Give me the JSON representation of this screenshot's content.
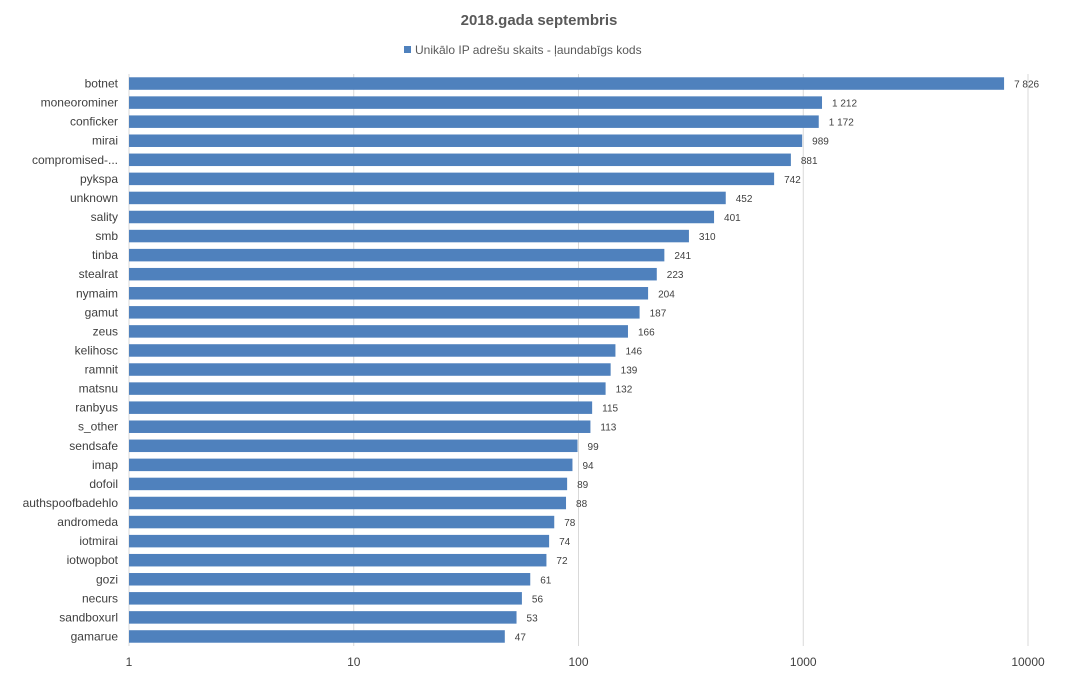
{
  "chart_data": {
    "type": "bar",
    "orientation": "horizontal",
    "title": "2018.gada septembris",
    "legend_position": "top",
    "x_scale": "log",
    "xlim": [
      1,
      10000
    ],
    "grid": true,
    "color": "#4f81bd",
    "x_ticks": [
      "1",
      "10",
      "100",
      "1000",
      "10000"
    ],
    "categories": [
      "botnet",
      "moneorominer",
      "conficker",
      "mirai",
      "compromised-...",
      "pykspa",
      "unknown",
      "sality",
      "smb",
      "tinba",
      "stealrat",
      "nymaim",
      "gamut",
      "zeus",
      "kelihosc",
      "ramnit",
      "matsnu",
      "ranbyus",
      "s_other",
      "sendsafe",
      "imap",
      "dofoil",
      "authspoofbadehlo",
      "andromeda",
      "iotmirai",
      "iotwopbot",
      "gozi",
      "necurs",
      "sandboxurl",
      "gamarue"
    ],
    "series": [
      {
        "name": "Unikālo IP adrešu skaits -  ļaundabīgs kods",
        "values": [
          7826,
          1212,
          1172,
          989,
          881,
          742,
          452,
          401,
          310,
          241,
          223,
          204,
          187,
          166,
          146,
          139,
          132,
          115,
          113,
          99,
          94,
          89,
          88,
          78,
          74,
          72,
          61,
          56,
          53,
          47
        ],
        "labels": [
          "7 826",
          "1 212",
          "1 172",
          "989",
          "881",
          "742",
          "452",
          "401",
          "310",
          "241",
          "223",
          "204",
          "187",
          "166",
          "146",
          "139",
          "132",
          "115",
          "113",
          "99",
          "94",
          "89",
          "88",
          "78",
          "74",
          "72",
          "61",
          "56",
          "53",
          "47"
        ]
      }
    ]
  }
}
